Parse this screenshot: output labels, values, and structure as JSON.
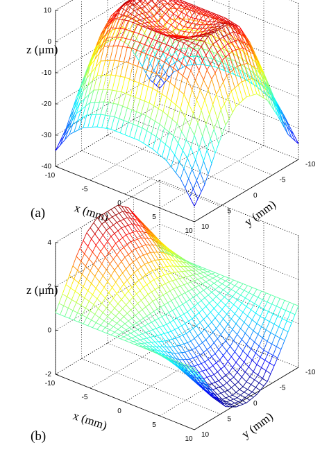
{
  "chart_data": [
    {
      "type": "surface",
      "panel_label": "(a)",
      "xlabel": "x (mm)",
      "ylabel": "y (mm)",
      "zlabel": "z (μm)",
      "xlim": [
        -10,
        10
      ],
      "ylim": [
        -10,
        10
      ],
      "zlim": [
        -40,
        10
      ],
      "xticks": [
        -10,
        -5,
        0,
        5,
        10
      ],
      "yticks": [
        -10,
        -5,
        0,
        5,
        10
      ],
      "zticks": [
        -40,
        -30,
        -20,
        -10,
        0,
        10
      ],
      "xtick_labels": [
        "-10",
        "-5",
        "0",
        "5",
        "10"
      ],
      "ytick_labels": [
        "-10",
        "-5",
        "0",
        "5",
        "10"
      ],
      "ztick_labels": [
        "-40",
        "-30",
        "-20",
        "-10",
        "0",
        "10"
      ],
      "grid": true,
      "colormap": "jet",
      "surface": {
        "x": [
          -10,
          -8,
          -6,
          -4,
          -2,
          0,
          2,
          4,
          6,
          8,
          10
        ],
        "y": [
          -10,
          -8,
          -6,
          -4,
          -2,
          0,
          2,
          4,
          6,
          8,
          10
        ],
        "z": [
          [
            -35,
            -30,
            -22,
            -15,
            -11,
            -10,
            -11,
            -15,
            -22,
            -30,
            -35
          ],
          [
            -28,
            -20,
            -10,
            -2,
            2,
            3,
            2,
            -2,
            -10,
            -20,
            -28
          ],
          [
            -24,
            -14,
            -2,
            5,
            8,
            8,
            8,
            5,
            -2,
            -14,
            -24
          ],
          [
            -22,
            -12,
            0,
            6,
            6,
            5,
            6,
            6,
            0,
            -12,
            -22
          ],
          [
            -21,
            -11,
            1,
            6,
            4,
            2,
            4,
            6,
            1,
            -11,
            -21
          ],
          [
            -21,
            -11,
            1,
            6,
            3,
            1,
            3,
            6,
            1,
            -11,
            -21
          ],
          [
            -21,
            -11,
            1,
            6,
            4,
            2,
            4,
            6,
            1,
            -11,
            -21
          ],
          [
            -22,
            -12,
            0,
            6,
            6,
            5,
            6,
            6,
            0,
            -12,
            -22
          ],
          [
            -24,
            -14,
            -2,
            5,
            8,
            8,
            8,
            5,
            -2,
            -14,
            -24
          ],
          [
            -28,
            -20,
            -10,
            -2,
            2,
            3,
            2,
            -2,
            -10,
            -20,
            -28
          ],
          [
            -35,
            -30,
            -22,
            -15,
            -11,
            -10,
            -11,
            -15,
            -22,
            -30,
            -35
          ]
        ]
      }
    },
    {
      "type": "surface",
      "panel_label": "(b)",
      "xlabel": "x (mm)",
      "ylabel": "y (mm)",
      "zlabel": "z (μm)",
      "xlim": [
        -10,
        10
      ],
      "ylim": [
        -10,
        10
      ],
      "zlim": [
        -2,
        4
      ],
      "xticks": [
        -10,
        -5,
        0,
        5,
        10
      ],
      "yticks": [
        -10,
        -5,
        0,
        5,
        10
      ],
      "zticks": [
        -2,
        0,
        2,
        4
      ],
      "xtick_labels": [
        "-10",
        "-5",
        "0",
        "5",
        "10"
      ],
      "ytick_labels": [
        "-10",
        "-5",
        "0",
        "5",
        "10"
      ],
      "ztick_labels": [
        "-2",
        "0",
        "2",
        "4"
      ],
      "grid": true,
      "colormap": "jet",
      "surface": {
        "x": [
          -10,
          -8,
          -6,
          -4,
          -2,
          0,
          2,
          4,
          6,
          8,
          10
        ],
        "y": [
          -10,
          -8,
          -6,
          -4,
          -2,
          0,
          2,
          4,
          6,
          8,
          10
        ],
        "z": [
          [
            0.8,
            1.8,
            2.8,
            3.6,
            4.0,
            4.0,
            4.0,
            3.6,
            2.8,
            1.8,
            0.8
          ],
          [
            0.8,
            1.6,
            2.4,
            3.0,
            3.4,
            3.5,
            3.4,
            3.0,
            2.4,
            1.6,
            0.8
          ],
          [
            0.8,
            1.4,
            1.9,
            2.4,
            2.7,
            2.8,
            2.7,
            2.4,
            1.9,
            1.4,
            0.8
          ],
          [
            0.8,
            1.1,
            1.4,
            1.7,
            1.9,
            2.0,
            1.9,
            1.7,
            1.4,
            1.1,
            0.8
          ],
          [
            0.8,
            0.9,
            1.0,
            1.1,
            1.2,
            1.2,
            1.2,
            1.1,
            1.0,
            0.9,
            0.8
          ],
          [
            0.8,
            0.7,
            0.6,
            0.5,
            0.4,
            0.4,
            0.4,
            0.5,
            0.6,
            0.7,
            0.8
          ],
          [
            0.8,
            0.5,
            0.2,
            -0.1,
            -0.3,
            -0.4,
            -0.3,
            -0.1,
            0.2,
            0.5,
            0.8
          ],
          [
            0.8,
            0.3,
            -0.2,
            -0.7,
            -1.0,
            -1.1,
            -1.0,
            -0.7,
            -0.2,
            0.3,
            0.8
          ],
          [
            0.8,
            0.1,
            -0.6,
            -1.2,
            -1.6,
            -1.7,
            -1.6,
            -1.2,
            -0.6,
            0.1,
            0.8
          ],
          [
            0.8,
            0.0,
            -0.9,
            -1.6,
            -2.0,
            -2.1,
            -2.0,
            -1.6,
            -0.9,
            0.0,
            0.8
          ],
          [
            0.8,
            -0.1,
            -1.0,
            -1.8,
            -2.1,
            -2.2,
            -2.1,
            -1.8,
            -1.0,
            -0.1,
            0.8
          ]
        ]
      }
    }
  ]
}
